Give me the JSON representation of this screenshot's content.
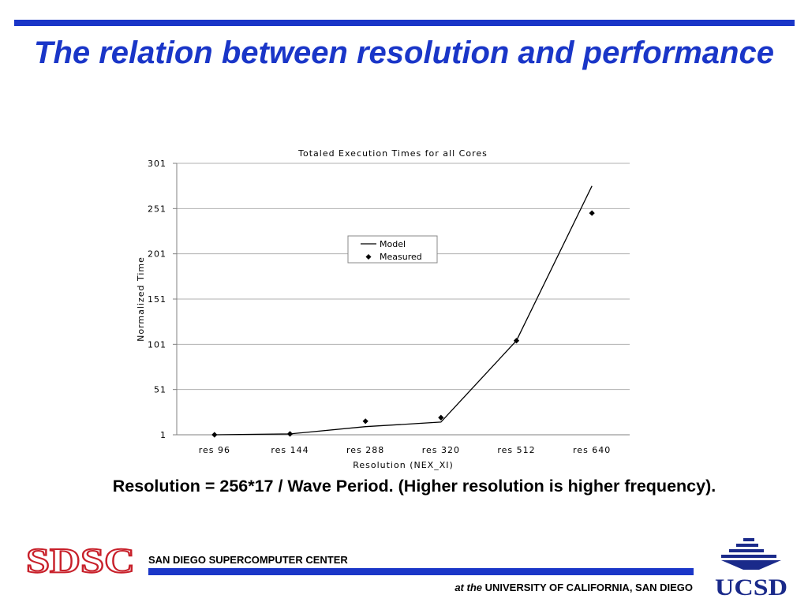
{
  "slide": {
    "title": "The relation between resolution and performance",
    "caption": "Resolution = 256*17 / Wave Period. (Higher resolution is higher frequency).",
    "accent_color": "#1a36c8"
  },
  "footer": {
    "org_logo_text": "SDSC",
    "org_logo_color": "#c8202a",
    "center_name": "SAN DIEGO SUPERCOMPUTER CENTER",
    "affiliation_prefix": "at the",
    "affiliation_name": "UNIVERSITY OF CALIFORNIA, SAN DIEGO",
    "university_logo_text": "UCSD"
  },
  "chart_data": {
    "type": "line",
    "title": "Totaled Execution Times for all Cores",
    "xlabel": "Resolution (NEX_XI)",
    "ylabel": "Normalized Time",
    "categories": [
      "res 96",
      "res 144",
      "res 288",
      "res 320",
      "res 512",
      "res 640"
    ],
    "yticks": [
      1,
      51,
      101,
      151,
      201,
      251,
      301
    ],
    "ylim": [
      1,
      301
    ],
    "grid": true,
    "legend_position": "center",
    "series": [
      {
        "name": "Model",
        "style": "line",
        "values": [
          1,
          2,
          10,
          15,
          105,
          276
        ]
      },
      {
        "name": "Measured",
        "style": "marker",
        "marker": "diamond",
        "values": [
          1,
          2,
          16,
          20,
          105,
          246
        ]
      }
    ]
  }
}
